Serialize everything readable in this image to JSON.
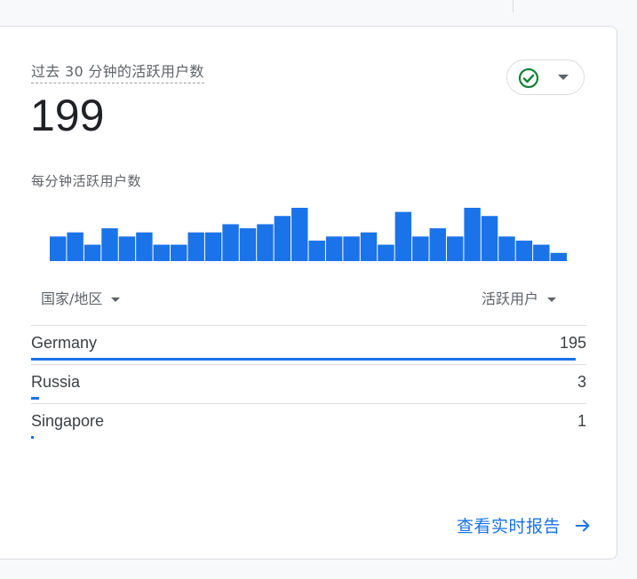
{
  "card": {
    "title": "过去 30 分钟的活跃用户数",
    "total": "199",
    "status_icon": "check-circle-icon",
    "subtitle": "每分钟活跃用户数"
  },
  "chart_data": {
    "type": "bar",
    "title": "",
    "xlabel": "",
    "ylabel": "",
    "values": [
      6,
      7,
      4,
      8,
      6,
      7,
      4,
      4,
      7,
      7,
      9,
      8,
      9,
      11,
      13,
      5,
      6,
      6,
      7,
      4,
      12,
      6,
      8,
      6,
      13,
      11,
      6,
      5,
      4,
      2
    ],
    "color": "#1a73e8",
    "ylim": [
      0,
      13
    ]
  },
  "table": {
    "col_dimension": "国家/地区",
    "col_metric": "活跃用户",
    "rows": [
      {
        "name": "Germany",
        "value": 195,
        "label": "195"
      },
      {
        "name": "Russia",
        "value": 3,
        "label": "3"
      },
      {
        "name": "Singapore",
        "value": 1,
        "label": "1"
      }
    ],
    "max_value": 195
  },
  "footer": {
    "link_label": "查看实时报告"
  },
  "colors": {
    "accent": "#1a73e8",
    "success": "#188038"
  }
}
